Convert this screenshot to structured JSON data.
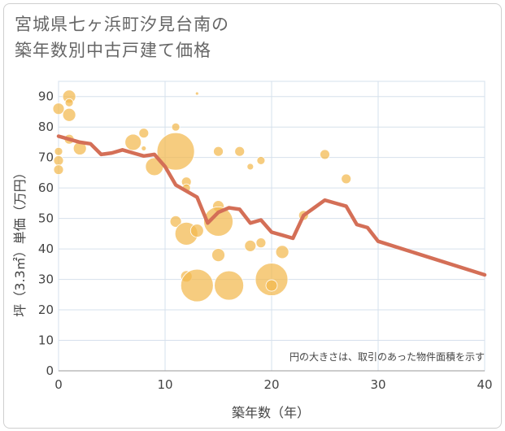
{
  "chart_data": {
    "type": "scatter+line",
    "title_lines": [
      "宮城県七ヶ浜町汐見台南の",
      "築年数別中古戸建て価格"
    ],
    "xlabel": "築年数（年）",
    "ylabel": "坪（3.3㎡）単価（万円）",
    "xlim": [
      0,
      40
    ],
    "ylim": [
      0,
      95
    ],
    "xticks": [
      "0",
      "10",
      "20",
      "30",
      "40"
    ],
    "yticks": [
      "0",
      "10",
      "20",
      "30",
      "40",
      "50",
      "60",
      "70",
      "80",
      "90"
    ],
    "note": "円の大きさは、取引のあった物件面積を示す",
    "colors": {
      "bubble": "#F2B94E",
      "line": "#D46F57",
      "grid": "#d6e0ec"
    },
    "line": {
      "x": [
        0,
        1,
        2,
        3,
        4,
        5,
        6,
        7,
        8,
        9,
        10,
        11,
        12,
        13,
        14,
        15,
        16,
        17,
        18,
        19,
        20,
        21,
        22,
        23,
        24,
        25,
        26,
        27,
        28,
        29,
        30,
        40
      ],
      "y": [
        77,
        76,
        75,
        74.5,
        71,
        71.5,
        72.5,
        71.5,
        70.5,
        71,
        67,
        61,
        59,
        57,
        48.5,
        52,
        53.5,
        53,
        48.5,
        49.5,
        45.5,
        44.5,
        43.5,
        51,
        53.5,
        56,
        55,
        54,
        48,
        47,
        42.5,
        31.5
      ]
    },
    "bubbles": [
      {
        "x": 0,
        "y": 86,
        "s": 7
      },
      {
        "x": 0,
        "y": 72,
        "s": 5
      },
      {
        "x": 0,
        "y": 69,
        "s": 6
      },
      {
        "x": 0,
        "y": 66,
        "s": 6
      },
      {
        "x": 1,
        "y": 90,
        "s": 8
      },
      {
        "x": 1,
        "y": 88,
        "s": 5
      },
      {
        "x": 1,
        "y": 84,
        "s": 8
      },
      {
        "x": 1,
        "y": 76,
        "s": 6
      },
      {
        "x": 2,
        "y": 73,
        "s": 8
      },
      {
        "x": 7,
        "y": 75,
        "s": 10
      },
      {
        "x": 8,
        "y": 78,
        "s": 6
      },
      {
        "x": 8,
        "y": 73,
        "s": 3
      },
      {
        "x": 9,
        "y": 67,
        "s": 11
      },
      {
        "x": 11,
        "y": 80,
        "s": 5
      },
      {
        "x": 11,
        "y": 72,
        "s": 23
      },
      {
        "x": 11,
        "y": 49,
        "s": 7
      },
      {
        "x": 12,
        "y": 62,
        "s": 6
      },
      {
        "x": 12,
        "y": 60,
        "s": 5
      },
      {
        "x": 12,
        "y": 45,
        "s": 14
      },
      {
        "x": 12,
        "y": 31,
        "s": 7
      },
      {
        "x": 13,
        "y": 91,
        "s": 2
      },
      {
        "x": 13,
        "y": 46,
        "s": 8
      },
      {
        "x": 13,
        "y": 28,
        "s": 20
      },
      {
        "x": 15,
        "y": 72,
        "s": 6
      },
      {
        "x": 15,
        "y": 54,
        "s": 7
      },
      {
        "x": 15,
        "y": 49,
        "s": 18
      },
      {
        "x": 15,
        "y": 38,
        "s": 8
      },
      {
        "x": 16,
        "y": 28,
        "s": 18
      },
      {
        "x": 17,
        "y": 72,
        "s": 6
      },
      {
        "x": 18,
        "y": 67,
        "s": 4
      },
      {
        "x": 18,
        "y": 41,
        "s": 7
      },
      {
        "x": 19,
        "y": 69,
        "s": 5
      },
      {
        "x": 19,
        "y": 42,
        "s": 6
      },
      {
        "x": 20,
        "y": 30,
        "s": 20
      },
      {
        "x": 20,
        "y": 28,
        "s": 7
      },
      {
        "x": 21,
        "y": 39,
        "s": 8
      },
      {
        "x": 23,
        "y": 51,
        "s": 6
      },
      {
        "x": 25,
        "y": 71,
        "s": 6
      },
      {
        "x": 27,
        "y": 63,
        "s": 6
      }
    ]
  }
}
